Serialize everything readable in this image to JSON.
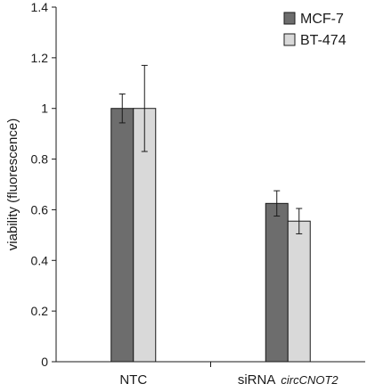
{
  "chart_data": {
    "type": "bar",
    "title": "",
    "xlabel": "",
    "ylabel": "viability (fluorescence)",
    "ylim": [
      0,
      1.4
    ],
    "yticks": [
      "0",
      "0.2",
      "0.4",
      "0.6",
      "0.8",
      "1",
      "1.2",
      "1.4"
    ],
    "categories": [
      {
        "text": "NTC",
        "italic": ""
      },
      {
        "text": "siRNA",
        "italic": "circCNOT2"
      }
    ],
    "series": [
      {
        "name": "MCF-7",
        "color": "#6d6d6d",
        "values": [
          1.0,
          0.625
        ],
        "errors": [
          0.057,
          0.05
        ]
      },
      {
        "name": "BT-474",
        "color": "#d9d9d9",
        "values": [
          1.0,
          0.555
        ],
        "errors": [
          0.17,
          0.05
        ]
      }
    ],
    "legend_position": "top-right",
    "grid": false
  }
}
